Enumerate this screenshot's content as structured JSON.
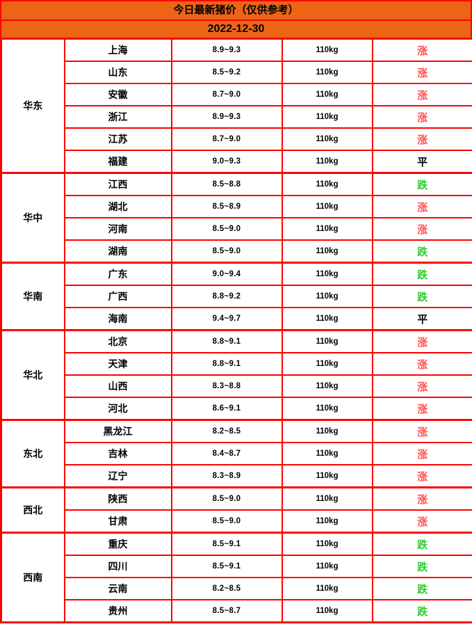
{
  "header": {
    "title": "今日最新猪价（仅供参考）",
    "date": "2022-12-30"
  },
  "colors": {
    "header_bg": "#EC6517",
    "border": "#FE0000",
    "up": "#FF5151",
    "down": "#33CC33",
    "flat": "#000000"
  },
  "regions": [
    {
      "name": "华东",
      "rows": [
        {
          "province": "上海",
          "price": "8.9~9.3",
          "weight": "110kg",
          "trend": "涨",
          "status": "up"
        },
        {
          "province": "山东",
          "price": "8.5~9.2",
          "weight": "110kg",
          "trend": "涨",
          "status": "up"
        },
        {
          "province": "安徽",
          "price": "8.7~9.0",
          "weight": "110kg",
          "trend": "涨",
          "status": "up"
        },
        {
          "province": "浙江",
          "price": "8.9~9.3",
          "weight": "110kg",
          "trend": "涨",
          "status": "up"
        },
        {
          "province": "江苏",
          "price": "8.7~9.0",
          "weight": "110kg",
          "trend": "涨",
          "status": "up"
        },
        {
          "province": "福建",
          "price": "9.0~9.3",
          "weight": "110kg",
          "trend": "平",
          "status": "flat"
        }
      ]
    },
    {
      "name": "华中",
      "rows": [
        {
          "province": "江西",
          "price": "8.5~8.8",
          "weight": "110kg",
          "trend": "跌",
          "status": "down"
        },
        {
          "province": "湖北",
          "price": "8.5~8.9",
          "weight": "110kg",
          "trend": "涨",
          "status": "up"
        },
        {
          "province": "河南",
          "price": "8.5~9.0",
          "weight": "110kg",
          "trend": "涨",
          "status": "up"
        },
        {
          "province": "湖南",
          "price": "8.5~9.0",
          "weight": "110kg",
          "trend": "跌",
          "status": "down"
        }
      ]
    },
    {
      "name": "华南",
      "rows": [
        {
          "province": "广东",
          "price": "9.0~9.4",
          "weight": "110kg",
          "trend": "跌",
          "status": "down"
        },
        {
          "province": "广西",
          "price": "8.8~9.2",
          "weight": "110kg",
          "trend": "跌",
          "status": "down"
        },
        {
          "province": "海南",
          "price": "9.4~9.7",
          "weight": "110kg",
          "trend": "平",
          "status": "flat"
        }
      ]
    },
    {
      "name": "华北",
      "rows": [
        {
          "province": "北京",
          "price": "8.8~9.1",
          "weight": "110kg",
          "trend": "涨",
          "status": "up"
        },
        {
          "province": "天津",
          "price": "8.8~9.1",
          "weight": "110kg",
          "trend": "涨",
          "status": "up"
        },
        {
          "province": "山西",
          "price": "8.3~8.8",
          "weight": "110kg",
          "trend": "涨",
          "status": "up"
        },
        {
          "province": "河北",
          "price": "8.6~9.1",
          "weight": "110kg",
          "trend": "涨",
          "status": "up"
        }
      ]
    },
    {
      "name": "东北",
      "rows": [
        {
          "province": "黑龙江",
          "price": "8.2~8.5",
          "weight": "110kg",
          "trend": "涨",
          "status": "up"
        },
        {
          "province": "吉林",
          "price": "8.4~8.7",
          "weight": "110kg",
          "trend": "涨",
          "status": "up"
        },
        {
          "province": "辽宁",
          "price": "8.3~8.9",
          "weight": "110kg",
          "trend": "涨",
          "status": "up"
        }
      ]
    },
    {
      "name": "西北",
      "rows": [
        {
          "province": "陕西",
          "price": "8.5~9.0",
          "weight": "110kg",
          "trend": "涨",
          "status": "up"
        },
        {
          "province": "甘肃",
          "price": "8.5~9.0",
          "weight": "110kg",
          "trend": "涨",
          "status": "up"
        }
      ]
    },
    {
      "name": "西南",
      "rows": [
        {
          "province": "重庆",
          "price": "8.5~9.1",
          "weight": "110kg",
          "trend": "跌",
          "status": "down"
        },
        {
          "province": "四川",
          "price": "8.5~9.1",
          "weight": "110kg",
          "trend": "跌",
          "status": "down"
        },
        {
          "province": "云南",
          "price": "8.2~8.5",
          "weight": "110kg",
          "trend": "跌",
          "status": "down"
        },
        {
          "province": "贵州",
          "price": "8.5~8.7",
          "weight": "110kg",
          "trend": "跌",
          "status": "down"
        }
      ]
    }
  ],
  "chart_data": {
    "type": "table",
    "title": "今日最新猪价（仅供参考）",
    "subtitle": "2022-12-30",
    "rows": [
      [
        "华东",
        "上海",
        "8.9~9.3",
        "110kg",
        "涨"
      ],
      [
        "华东",
        "山东",
        "8.5~9.2",
        "110kg",
        "涨"
      ],
      [
        "华东",
        "安徽",
        "8.7~9.0",
        "110kg",
        "涨"
      ],
      [
        "华东",
        "浙江",
        "8.9~9.3",
        "110kg",
        "涨"
      ],
      [
        "华东",
        "江苏",
        "8.7~9.0",
        "110kg",
        "涨"
      ],
      [
        "华东",
        "福建",
        "9.0~9.3",
        "110kg",
        "平"
      ],
      [
        "华中",
        "江西",
        "8.5~8.8",
        "110kg",
        "跌"
      ],
      [
        "华中",
        "湖北",
        "8.5~8.9",
        "110kg",
        "涨"
      ],
      [
        "华中",
        "河南",
        "8.5~9.0",
        "110kg",
        "涨"
      ],
      [
        "华中",
        "湖南",
        "8.5~9.0",
        "110kg",
        "跌"
      ],
      [
        "华南",
        "广东",
        "9.0~9.4",
        "110kg",
        "跌"
      ],
      [
        "华南",
        "广西",
        "8.8~9.2",
        "110kg",
        "跌"
      ],
      [
        "华南",
        "海南",
        "9.4~9.7",
        "110kg",
        "平"
      ],
      [
        "华北",
        "北京",
        "8.8~9.1",
        "110kg",
        "涨"
      ],
      [
        "华北",
        "天津",
        "8.8~9.1",
        "110kg",
        "涨"
      ],
      [
        "华北",
        "山西",
        "8.3~8.8",
        "110kg",
        "涨"
      ],
      [
        "华北",
        "河北",
        "8.6~9.1",
        "110kg",
        "涨"
      ],
      [
        "东北",
        "黑龙江",
        "8.2~8.5",
        "110kg",
        "涨"
      ],
      [
        "东北",
        "吉林",
        "8.4~8.7",
        "110kg",
        "涨"
      ],
      [
        "东北",
        "辽宁",
        "8.3~8.9",
        "110kg",
        "涨"
      ],
      [
        "西北",
        "陕西",
        "8.5~9.0",
        "110kg",
        "涨"
      ],
      [
        "西北",
        "甘肃",
        "8.5~9.0",
        "110kg",
        "涨"
      ],
      [
        "西南",
        "重庆",
        "8.5~9.1",
        "110kg",
        "跌"
      ],
      [
        "西南",
        "四川",
        "8.5~9.1",
        "110kg",
        "跌"
      ],
      [
        "西南",
        "云南",
        "8.2~8.5",
        "110kg",
        "跌"
      ],
      [
        "西南",
        "贵州",
        "8.5~8.7",
        "110kg",
        "跌"
      ]
    ]
  }
}
